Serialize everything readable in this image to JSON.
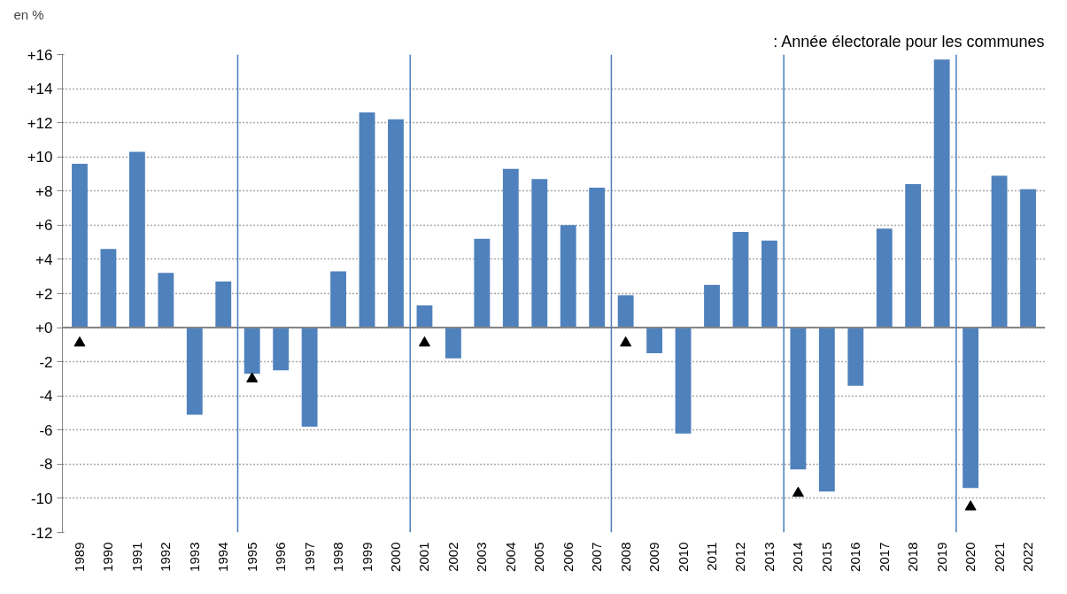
{
  "chart_data": {
    "type": "bar",
    "annotations": [
      "en %"
    ],
    "x": [
      1989,
      1990,
      1991,
      1992,
      1993,
      1994,
      1995,
      1996,
      1997,
      1998,
      1999,
      2000,
      2001,
      2002,
      2003,
      2004,
      2005,
      2006,
      2007,
      2008,
      2009,
      2010,
      2011,
      2012,
      2013,
      2014,
      2015,
      2016,
      2017,
      2018,
      2019,
      2020,
      2021,
      2022
    ],
    "xlim": [
      1988.4,
      2022.6
    ],
    "xticks": [
      1989,
      1990,
      1991,
      1992,
      1993,
      1994,
      1995,
      1996,
      1997,
      1998,
      1999,
      2000,
      2001,
      2002,
      2003,
      2004,
      2005,
      2006,
      2007,
      2008,
      2009,
      2010,
      2011,
      2012,
      2013,
      2014,
      2015,
      2016,
      2017,
      2018,
      2019,
      2020,
      2021,
      2022
    ],
    "ylim": [
      -12,
      16
    ],
    "yticks": [
      {
        "value": -12,
        "label": "-12"
      },
      {
        "value": -10,
        "label": "-10"
      },
      {
        "value": -8,
        "label": "-8"
      },
      {
        "value": -6,
        "label": "-6"
      },
      {
        "value": -4,
        "label": "-4"
      },
      {
        "value": -2,
        "label": "-2"
      },
      {
        "value": 0,
        "label": "+0"
      },
      {
        "value": 2,
        "label": "+2"
      },
      {
        "value": 4,
        "label": "+4"
      },
      {
        "value": 6,
        "label": "+6"
      },
      {
        "value": 8,
        "label": "+8"
      },
      {
        "value": 10,
        "label": "+10"
      },
      {
        "value": 12,
        "label": "+12"
      },
      {
        "value": 14,
        "label": "+14"
      },
      {
        "value": 16,
        "label": "+16"
      }
    ],
    "series": [
      {
        "color": "#4f81bd",
        "values": [
          9.6,
          4.6,
          10.3,
          3.2,
          -5.1,
          2.7,
          -2.7,
          -2.5,
          -5.8,
          3.3,
          12.6,
          12.2,
          1.3,
          -1.8,
          5.2,
          9.3,
          8.7,
          6.0,
          8.2,
          1.9,
          -1.5,
          -6.2,
          2.5,
          5.6,
          5.1,
          -8.3,
          -9.6,
          -3.4,
          5.8,
          8.4,
          15.7,
          -9.4,
          8.9,
          8.1
        ]
      },
      {
        "type": "scatter",
        "name": ": Année électorale pour les communes",
        "color": "#000000",
        "marker": "triangle",
        "x": [
          1989,
          1995,
          2001,
          2008,
          2014,
          2020
        ],
        "values": [
          -0.9,
          -3.0,
          -0.9,
          -0.9,
          -9.7,
          -10.5
        ]
      }
    ],
    "ref_lines": [
      {
        "axis": "x",
        "value": 1994.5,
        "color": "#4a7ebb"
      },
      {
        "axis": "x",
        "value": 2000.5,
        "color": "#4a7ebb"
      },
      {
        "axis": "x",
        "value": 2007.5,
        "color": "#4a7ebb"
      },
      {
        "axis": "x",
        "value": 2013.5,
        "color": "#4a7ebb"
      },
      {
        "axis": "x",
        "value": 2019.5,
        "color": "#4a7ebb"
      }
    ],
    "grid": "y",
    "legend": "top right"
  }
}
